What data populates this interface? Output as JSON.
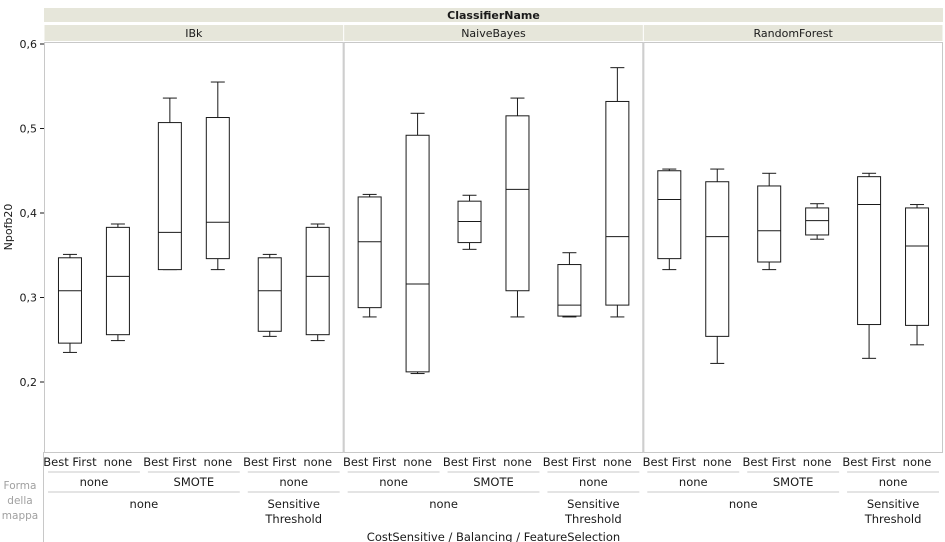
{
  "chart_data": {
    "type": "boxplot",
    "facet_header": "ClassifierName",
    "panels": [
      "IBk",
      "NaiveBayes",
      "RandomForest"
    ],
    "ylabel": "Npofb20",
    "ylim": [
      0.15,
      0.6
    ],
    "yticks": [
      "0,6",
      "0,5",
      "0,4",
      "0,3",
      "0,2"
    ],
    "ytick_values": [
      0.6,
      0.5,
      0.4,
      0.3,
      0.2
    ],
    "xlabel": "CostSensitive / Balancing / FeatureSelection",
    "feature_selection_labels": [
      "Best First",
      "none"
    ],
    "balancing_labels": [
      "none",
      "SMOTE",
      "none"
    ],
    "cost_labels": [
      "none",
      "Sensitive",
      "Threshold"
    ],
    "shape_label_lines": [
      "Forma",
      "della",
      "mappa"
    ],
    "boxes": [
      {
        "panel": "IBk",
        "group": 0,
        "fs": "Best First",
        "min": 0.235,
        "q1": 0.246,
        "median": 0.308,
        "q3": 0.347,
        "max": 0.351
      },
      {
        "panel": "IBk",
        "group": 0,
        "fs": "none",
        "min": 0.249,
        "q1": 0.256,
        "median": 0.325,
        "q3": 0.383,
        "max": 0.387
      },
      {
        "panel": "IBk",
        "group": 1,
        "fs": "Best First",
        "min": 0.333,
        "q1": 0.333,
        "median": 0.377,
        "q3": 0.507,
        "max": 0.536
      },
      {
        "panel": "IBk",
        "group": 1,
        "fs": "none",
        "min": 0.333,
        "q1": 0.346,
        "median": 0.389,
        "q3": 0.513,
        "max": 0.555
      },
      {
        "panel": "IBk",
        "group": 2,
        "fs": "Best First",
        "min": 0.254,
        "q1": 0.26,
        "median": 0.308,
        "q3": 0.347,
        "max": 0.351
      },
      {
        "panel": "IBk",
        "group": 2,
        "fs": "none",
        "min": 0.249,
        "q1": 0.256,
        "median": 0.325,
        "q3": 0.383,
        "max": 0.387
      },
      {
        "panel": "NaiveBayes",
        "group": 0,
        "fs": "Best First",
        "min": 0.277,
        "q1": 0.288,
        "median": 0.366,
        "q3": 0.419,
        "max": 0.422
      },
      {
        "panel": "NaiveBayes",
        "group": 0,
        "fs": "none",
        "min": 0.21,
        "q1": 0.212,
        "median": 0.316,
        "q3": 0.492,
        "max": 0.518
      },
      {
        "panel": "NaiveBayes",
        "group": 1,
        "fs": "Best First",
        "min": 0.357,
        "q1": 0.365,
        "median": 0.39,
        "q3": 0.414,
        "max": 0.421
      },
      {
        "panel": "NaiveBayes",
        "group": 1,
        "fs": "none",
        "min": 0.277,
        "q1": 0.308,
        "median": 0.428,
        "q3": 0.515,
        "max": 0.536
      },
      {
        "panel": "NaiveBayes",
        "group": 2,
        "fs": "Best First",
        "min": 0.277,
        "q1": 0.278,
        "median": 0.291,
        "q3": 0.339,
        "max": 0.353
      },
      {
        "panel": "NaiveBayes",
        "group": 2,
        "fs": "none",
        "min": 0.277,
        "q1": 0.291,
        "median": 0.372,
        "q3": 0.532,
        "max": 0.572
      },
      {
        "panel": "RandomForest",
        "group": 0,
        "fs": "Best First",
        "min": 0.333,
        "q1": 0.346,
        "median": 0.416,
        "q3": 0.45,
        "max": 0.452
      },
      {
        "panel": "RandomForest",
        "group": 0,
        "fs": "none",
        "min": 0.222,
        "q1": 0.254,
        "median": 0.372,
        "q3": 0.437,
        "max": 0.452
      },
      {
        "panel": "RandomForest",
        "group": 1,
        "fs": "Best First",
        "min": 0.333,
        "q1": 0.342,
        "median": 0.379,
        "q3": 0.432,
        "max": 0.447
      },
      {
        "panel": "RandomForest",
        "group": 1,
        "fs": "none",
        "min": 0.369,
        "q1": 0.374,
        "median": 0.391,
        "q3": 0.406,
        "max": 0.411
      },
      {
        "panel": "RandomForest",
        "group": 2,
        "fs": "Best First",
        "min": 0.228,
        "q1": 0.268,
        "median": 0.41,
        "q3": 0.443,
        "max": 0.447
      },
      {
        "panel": "RandomForest",
        "group": 2,
        "fs": "none",
        "min": 0.244,
        "q1": 0.267,
        "median": 0.361,
        "q3": 0.406,
        "max": 0.41
      }
    ],
    "colors": {
      "header_bg": "#e6e6da",
      "frame": "#c8c8c8",
      "box": "#1a1a1a",
      "axis_text": "#1a1a1a",
      "muted_text": "#a0a0a0"
    }
  }
}
